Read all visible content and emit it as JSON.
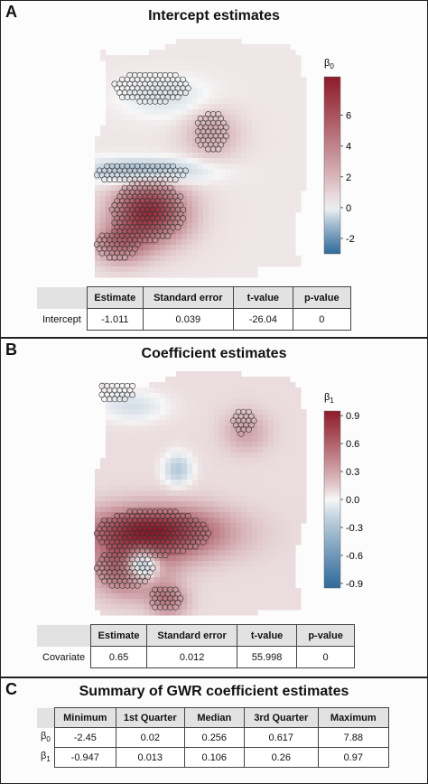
{
  "panels": [
    {
      "letter": "A",
      "title": "Intercept estimates",
      "legend": {
        "symbol": "β",
        "subscript": "0",
        "ticks": [
          "6",
          "4",
          "2",
          "0",
          "-2"
        ],
        "range": [
          -3,
          8.5
        ]
      },
      "table": {
        "headers": [
          "Estimate",
          "Standard error",
          "t-value",
          "p-value"
        ],
        "row_label": "Intercept",
        "values": [
          "-1.011",
          "0.039",
          "-26.04",
          "0"
        ]
      }
    },
    {
      "letter": "B",
      "title": "Coefficient estimates",
      "legend": {
        "symbol": "β",
        "subscript": "1",
        "ticks": [
          "0.9",
          "0.6",
          "0.3",
          "0.0",
          "-0.3",
          "-0.6",
          "-0.9"
        ],
        "range": [
          -0.95,
          0.95
        ]
      },
      "table": {
        "headers": [
          "Estimate",
          "Standard error",
          "t-value",
          "p-value"
        ],
        "row_label": "Covariate",
        "values": [
          "0.65",
          "0.012",
          "55.998",
          "0"
        ]
      }
    }
  ],
  "summary": {
    "letter": "C",
    "title": "Summary of GWR coefficient estimates",
    "headers": [
      "Minimum",
      "1st Quarter",
      "Median",
      "3rd Quarter",
      "Maximum"
    ],
    "rows": [
      {
        "symbol": "β",
        "subscript": "0",
        "values": [
          "-2.45",
          "0.02",
          "0.256",
          "0.617",
          "7.88"
        ]
      },
      {
        "symbol": "β",
        "subscript": "1",
        "values": [
          "-0.947",
          "0.013",
          "0.106",
          "0.26",
          "0.97"
        ]
      }
    ]
  },
  "colors": {
    "high": "#8e1b2a",
    "mid": "#f7f7f7",
    "low": "#2f6a9a",
    "border": "#222222",
    "header_fill": "#e2e2e2"
  }
}
